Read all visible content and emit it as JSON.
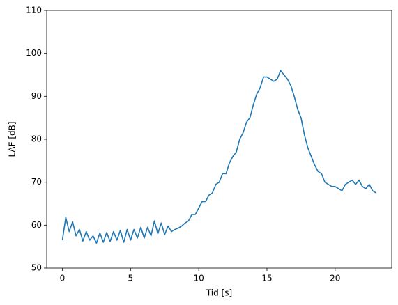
{
  "chart_data": {
    "type": "line",
    "xlabel": "Tid [s]",
    "ylabel": "LAF [dB]",
    "x": [
      0,
      0.25,
      0.5,
      0.75,
      1,
      1.25,
      1.5,
      1.75,
      2,
      2.25,
      2.5,
      2.75,
      3,
      3.25,
      3.5,
      3.75,
      4,
      4.25,
      4.5,
      4.75,
      5,
      5.25,
      5.5,
      5.75,
      6,
      6.25,
      6.5,
      6.75,
      7,
      7.25,
      7.5,
      7.75,
      8,
      8.25,
      8.5,
      8.75,
      9,
      9.25,
      9.5,
      9.75,
      10,
      10.25,
      10.5,
      10.75,
      11,
      11.25,
      11.5,
      11.75,
      12,
      12.25,
      12.5,
      12.75,
      13,
      13.25,
      13.5,
      13.75,
      14,
      14.25,
      14.5,
      14.75,
      15,
      15.25,
      15.5,
      15.75,
      16,
      16.25,
      16.5,
      16.75,
      17,
      17.25,
      17.5,
      17.75,
      18,
      18.25,
      18.5,
      18.75,
      19,
      19.25,
      19.5,
      19.75,
      20,
      20.25,
      20.5,
      20.75,
      21,
      21.25,
      21.5,
      21.75,
      22,
      22.25,
      22.5,
      22.75,
      23
    ],
    "series": [
      {
        "color": "#1f77b4",
        "values": [
          56.5,
          61.8,
          58.5,
          60.8,
          57.5,
          59,
          56.3,
          58.5,
          56.5,
          57.5,
          55.8,
          58.2,
          56,
          58.3,
          56.2,
          58.5,
          56.5,
          58.8,
          56,
          59,
          56.5,
          59,
          57,
          59.5,
          57,
          59.5,
          57.5,
          61,
          58,
          60.5,
          57.8,
          59.8,
          58.5,
          59,
          59.3,
          59.8,
          60.5,
          61,
          62.5,
          62.5,
          64,
          65.5,
          65.5,
          67,
          67.5,
          69.5,
          70,
          72,
          72,
          74.5,
          76,
          77,
          80,
          81.5,
          84,
          85,
          88,
          90.5,
          92,
          94.5,
          94.5,
          94,
          93.5,
          94,
          96,
          95,
          94,
          92.5,
          90,
          87,
          85,
          81,
          78,
          76,
          74,
          72.5,
          72,
          70,
          69.5,
          69,
          69,
          68.5,
          68,
          69.5,
          70,
          70.5,
          69.5,
          70.5,
          69,
          68.5,
          69.5,
          68,
          67.5
        ]
      }
    ],
    "xlim": [
      -1.15,
      24.15
    ],
    "xticks": [
      0,
      5,
      10,
      15,
      20
    ],
    "ylim": [
      50,
      110
    ],
    "yticks": [
      50,
      60,
      70,
      80,
      90,
      100,
      110
    ]
  }
}
